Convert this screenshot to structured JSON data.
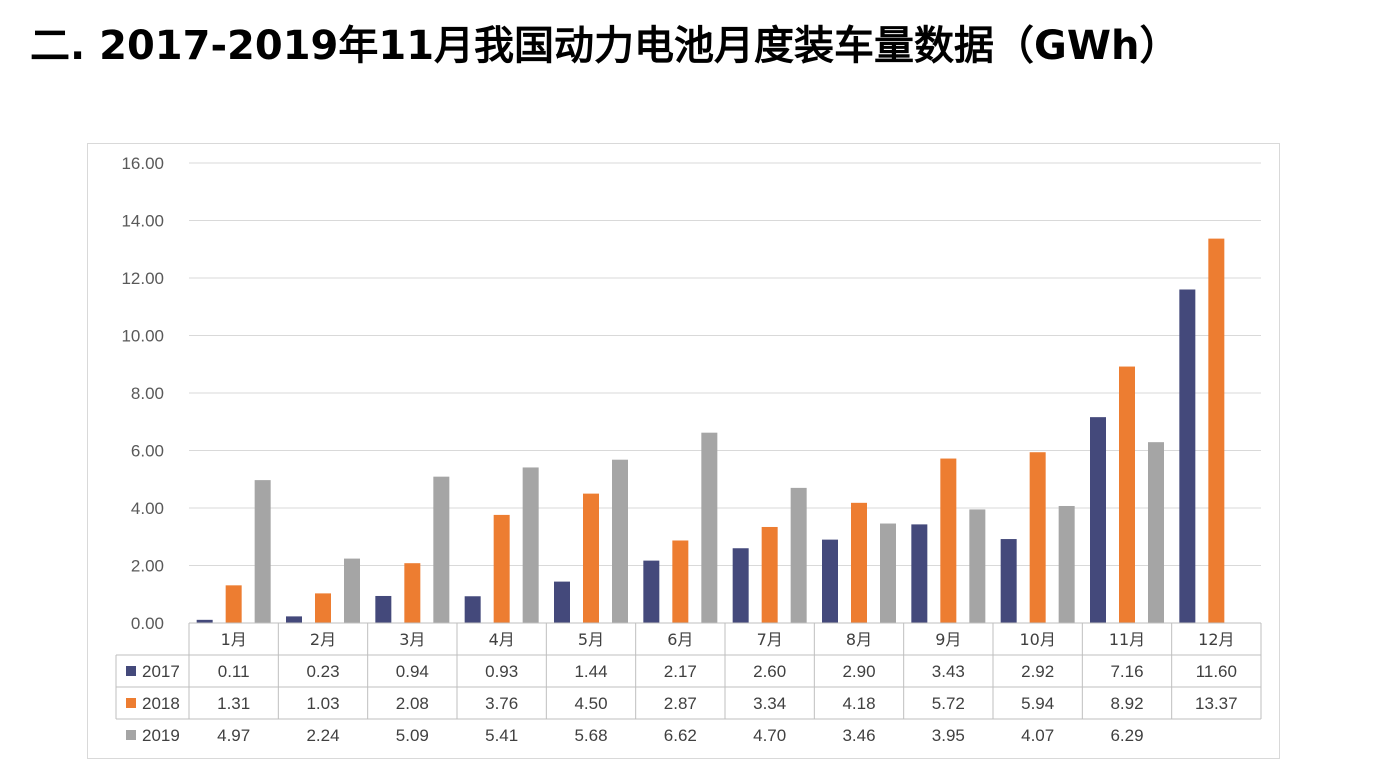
{
  "page": {
    "title": "二. 2017-2019年11月我国动力电池月度装车量数据（GWh）"
  },
  "colors": {
    "2017": "#44497b",
    "2018": "#ed7d31",
    "2019": "#a5a5a5",
    "grid": "#d9d9d9",
    "axis": "#bfbfbf"
  },
  "chart_data": {
    "type": "bar",
    "title": "",
    "xlabel": "",
    "ylabel": "",
    "ylim": [
      0,
      16
    ],
    "yticks": [
      "0.00",
      "2.00",
      "4.00",
      "6.00",
      "8.00",
      "10.00",
      "12.00",
      "14.00",
      "16.00"
    ],
    "grid": true,
    "legend": "data-table",
    "categories": [
      "1月",
      "2月",
      "3月",
      "4月",
      "5月",
      "6月",
      "7月",
      "8月",
      "9月",
      "10月",
      "11月",
      "12月"
    ],
    "series": [
      {
        "name": "2017",
        "values": [
          0.11,
          0.23,
          0.94,
          0.93,
          1.44,
          2.17,
          2.6,
          2.9,
          3.43,
          2.92,
          7.16,
          11.6
        ],
        "labels": [
          "0.11",
          "0.23",
          "0.94",
          "0.93",
          "1.44",
          "2.17",
          "2.60",
          "2.90",
          "3.43",
          "2.92",
          "7.16",
          "11.60"
        ]
      },
      {
        "name": "2018",
        "values": [
          1.31,
          1.03,
          2.08,
          3.76,
          4.5,
          2.87,
          3.34,
          4.18,
          5.72,
          5.94,
          8.92,
          13.37
        ],
        "labels": [
          "1.31",
          "1.03",
          "2.08",
          "3.76",
          "4.50",
          "2.87",
          "3.34",
          "4.18",
          "5.72",
          "5.94",
          "8.92",
          "13.37"
        ]
      },
      {
        "name": "2019",
        "values": [
          4.97,
          2.24,
          5.09,
          5.41,
          5.68,
          6.62,
          4.7,
          3.46,
          3.95,
          4.07,
          6.29,
          null
        ],
        "labels": [
          "4.97",
          "2.24",
          "5.09",
          "5.41",
          "5.68",
          "6.62",
          "4.70",
          "3.46",
          "3.95",
          "4.07",
          "6.29",
          ""
        ]
      }
    ]
  }
}
